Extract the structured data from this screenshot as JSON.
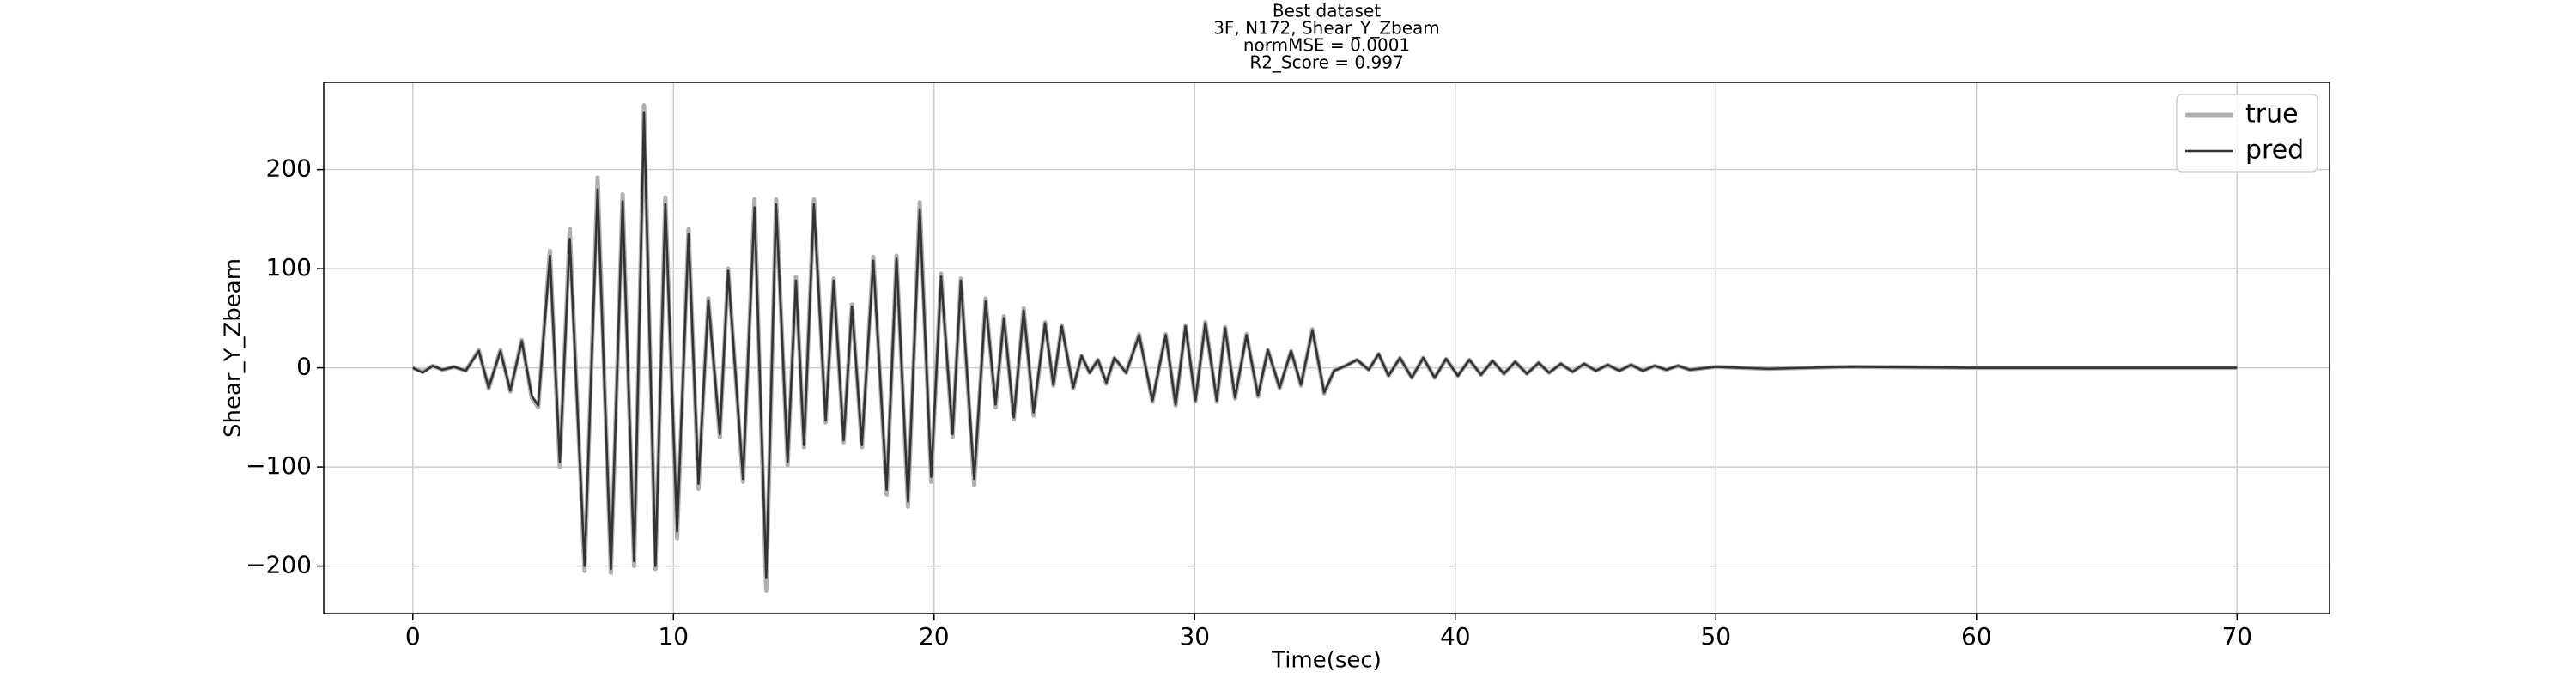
{
  "chart_data": {
    "type": "line",
    "title": [
      "Best dataset",
      "3F, N172, Shear_Y_Zbeam",
      "normMSE = 0.0001",
      "R2_Score = 0.997"
    ],
    "xlabel": "Time(sec)",
    "ylabel": "Shear_Y_Zbeam",
    "x": [
      0,
      0.38,
      0.76,
      1.14,
      1.58,
      2.03,
      2.53,
      2.91,
      3.36,
      3.74,
      4.18,
      4.56,
      4.81,
      5.26,
      5.64,
      6.02,
      6.59,
      7.09,
      7.6,
      8.05,
      8.49,
      8.87,
      9.31,
      9.69,
      10.14,
      10.58,
      10.96,
      11.34,
      11.78,
      12.1,
      12.67,
      13.11,
      13.56,
      13.94,
      14.38,
      14.7,
      15.01,
      15.39,
      15.84,
      16.15,
      16.53,
      16.85,
      17.23,
      17.67,
      18.18,
      18.56,
      19.0,
      19.45,
      19.89,
      20.27,
      20.71,
      21.03,
      21.54,
      21.98,
      22.36,
      22.68,
      23.06,
      23.44,
      23.82,
      24.26,
      24.58,
      24.9,
      25.34,
      25.66,
      25.97,
      26.29,
      26.61,
      26.92,
      27.37,
      27.87,
      28.38,
      28.89,
      29.27,
      29.65,
      30.03,
      30.41,
      30.85,
      31.17,
      31.55,
      31.99,
      32.43,
      32.81,
      33.26,
      33.7,
      34.08,
      34.52,
      34.97,
      35.35,
      35.79,
      36.23,
      36.68,
      37.06,
      37.44,
      37.88,
      38.33,
      38.77,
      39.21,
      39.65,
      40.1,
      40.54,
      40.99,
      41.43,
      41.87,
      42.3,
      42.75,
      43.2,
      43.6,
      44.05,
      44.5,
      44.95,
      45.4,
      45.85,
      46.3,
      46.75,
      47.2,
      47.65,
      48.1,
      48.55,
      49,
      50,
      52,
      55,
      60,
      65,
      70
    ],
    "series": [
      {
        "name": "true",
        "color": "#b0b0b0",
        "width": 5,
        "values": [
          0,
          -4,
          2,
          -2,
          1,
          -3,
          18,
          -21,
          18,
          -24,
          28,
          -30,
          -40,
          118,
          -100,
          140,
          -205,
          192,
          -207,
          175,
          -200,
          265,
          -203,
          172,
          -172,
          140,
          -122,
          70,
          -70,
          100,
          -115,
          170,
          -225,
          170,
          -98,
          92,
          -80,
          170,
          -55,
          90,
          -75,
          64,
          -80,
          112,
          -128,
          113,
          -140,
          167,
          -115,
          95,
          -70,
          90,
          -118,
          70,
          -40,
          52,
          -52,
          60,
          -48,
          46,
          -18,
          43,
          -21,
          12,
          -5,
          8,
          -16,
          10,
          -5,
          34,
          -34,
          34,
          -38,
          43,
          -34,
          46,
          -34,
          41,
          -31,
          34,
          -29,
          18,
          -21,
          17,
          -18,
          39,
          -26,
          -3,
          2,
          8,
          -2,
          14,
          -8,
          10,
          -10,
          10,
          -10,
          9,
          -8,
          8,
          -7,
          7,
          -6,
          6,
          -6,
          5,
          -5,
          4,
          -4,
          4,
          -3,
          3,
          -3,
          3,
          -3,
          2,
          -2,
          2,
          -2,
          1,
          -1,
          1,
          0,
          0,
          0
        ]
      },
      {
        "name": "pred",
        "color": "#333333",
        "width": 2.6,
        "values": [
          0,
          -5,
          2,
          -2,
          1,
          -3,
          17,
          -20,
          17,
          -23,
          27,
          -28,
          -38,
          113,
          -95,
          130,
          -200,
          180,
          -203,
          168,
          -195,
          258,
          -200,
          165,
          -165,
          135,
          -117,
          68,
          -67,
          98,
          -112,
          162,
          -212,
          165,
          -95,
          88,
          -78,
          165,
          -53,
          88,
          -73,
          62,
          -78,
          108,
          -123,
          110,
          -135,
          160,
          -110,
          92,
          -67,
          88,
          -112,
          67,
          -37,
          50,
          -50,
          58,
          -45,
          45,
          -17,
          42,
          -20,
          12,
          -5,
          8,
          -15,
          10,
          -5,
          33,
          -33,
          33,
          -37,
          42,
          -33,
          45,
          -33,
          40,
          -30,
          33,
          -28,
          18,
          -20,
          17,
          -17,
          38,
          -25,
          -3,
          2,
          8,
          -2,
          14,
          -8,
          10,
          -10,
          10,
          -10,
          9,
          -8,
          8,
          -7,
          7,
          -6,
          6,
          -6,
          5,
          -5,
          4,
          -4,
          4,
          -3,
          3,
          -3,
          3,
          -3,
          2,
          -2,
          2,
          -2,
          1,
          -1,
          1,
          0,
          0,
          0
        ]
      }
    ],
    "xlim": [
      -3.42,
      73.55
    ],
    "ylim": [
      -248,
      288
    ],
    "xticks": [
      0,
      10,
      20,
      30,
      40,
      50,
      60,
      70
    ],
    "yticks": [
      {
        "value": -200,
        "label": "−200"
      },
      {
        "value": -100,
        "label": "−100"
      },
      0,
      100,
      200
    ],
    "grid": true,
    "legend": "upper right"
  }
}
